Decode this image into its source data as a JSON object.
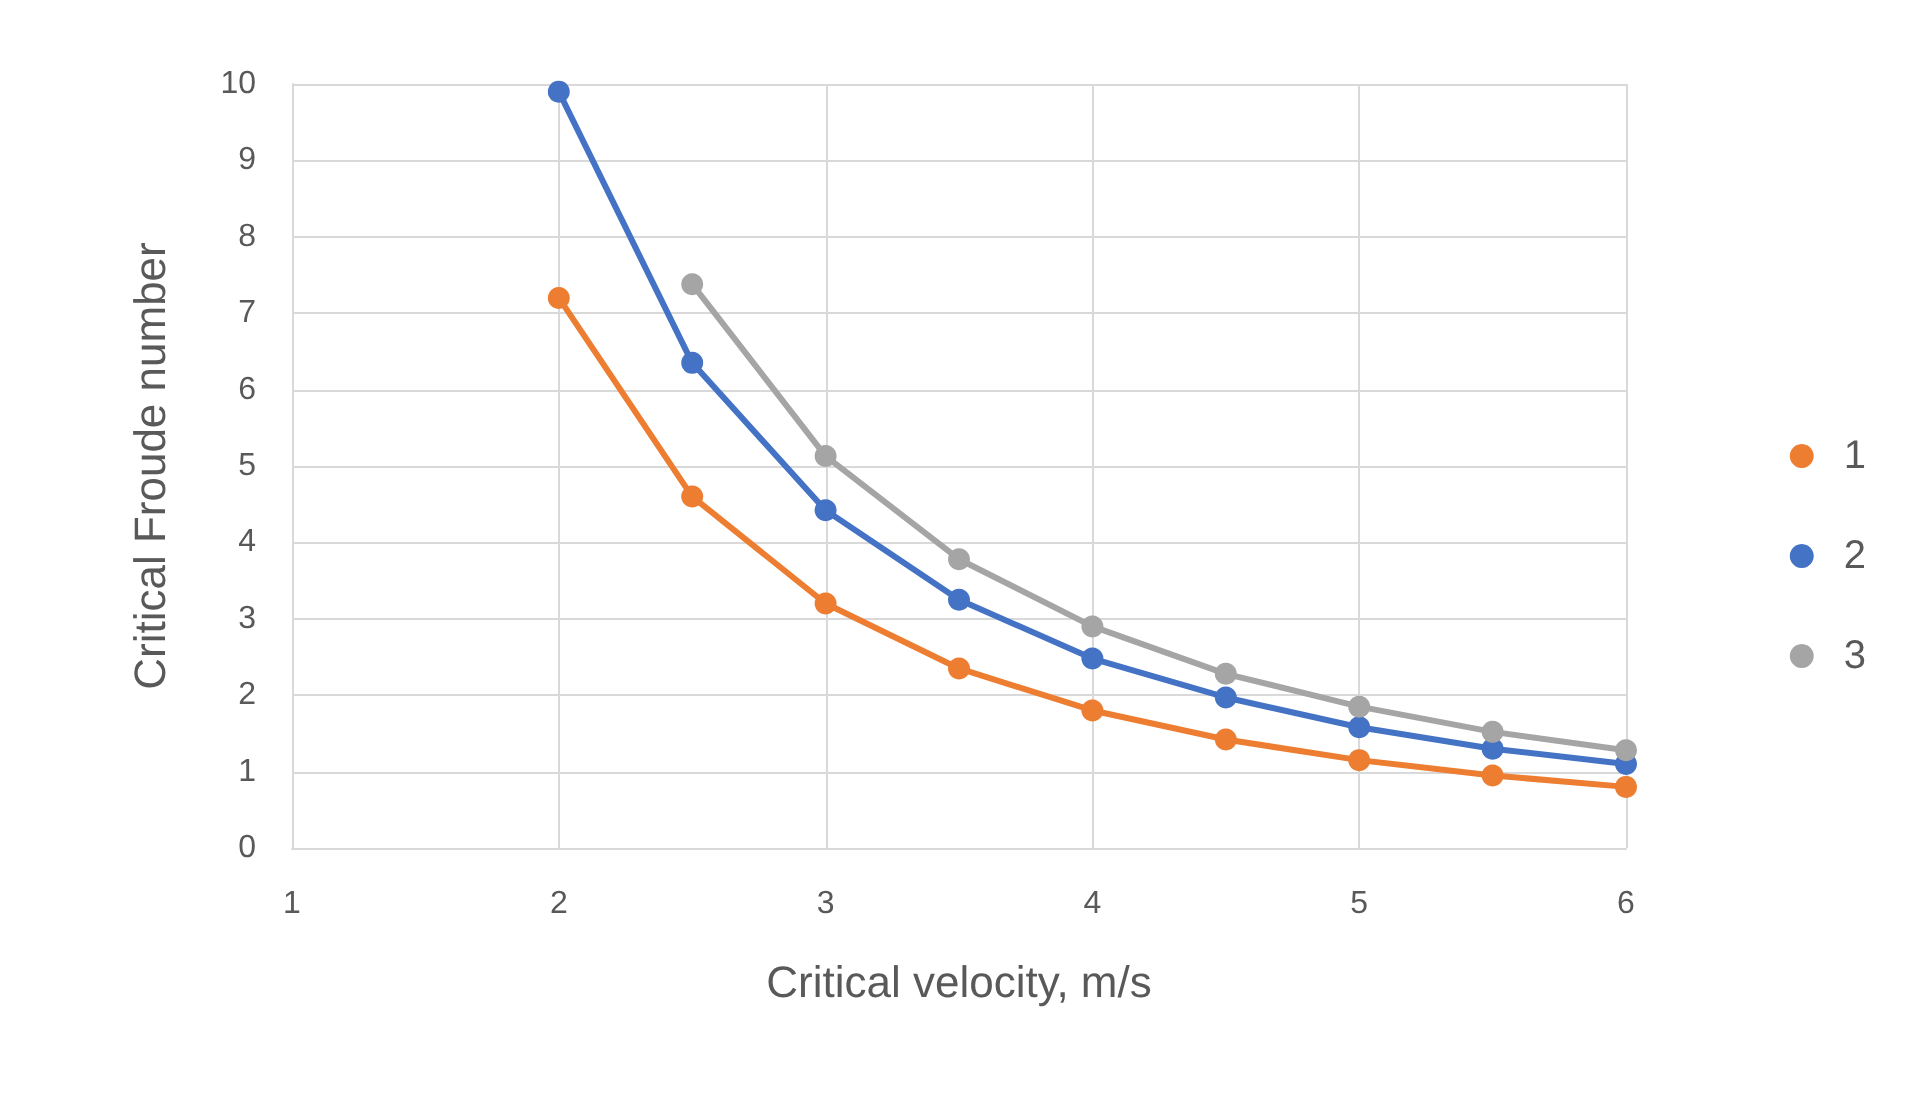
{
  "chart_data": {
    "type": "line",
    "xlabel": "Critical velocity, m/s",
    "ylabel": "Critical Froude number",
    "x": [
      2,
      2.5,
      3,
      3.5,
      4,
      4.5,
      5,
      5.5,
      6
    ],
    "series": [
      {
        "name": "1",
        "color": "#ed7d31",
        "values": [
          7.2,
          4.6,
          3.2,
          2.35,
          1.8,
          1.42,
          1.15,
          0.95,
          0.8
        ]
      },
      {
        "name": "2",
        "color": "#4472c4",
        "values": [
          9.9,
          6.35,
          4.42,
          3.25,
          2.48,
          1.97,
          1.58,
          1.3,
          1.1
        ]
      },
      {
        "name": "3",
        "color": "#a5a5a5",
        "values": [
          null,
          7.38,
          5.13,
          3.78,
          2.9,
          2.28,
          1.85,
          1.52,
          1.28
        ]
      }
    ],
    "xlim": [
      1,
      6
    ],
    "xticks": [
      1,
      2,
      3,
      4,
      5,
      6
    ],
    "ylim": [
      0,
      10
    ],
    "yticks": [
      0,
      1,
      2,
      3,
      4,
      5,
      6,
      7,
      8,
      9,
      10
    ],
    "grid": true,
    "legend": "right",
    "marker": "circle",
    "line_style": "solid"
  }
}
